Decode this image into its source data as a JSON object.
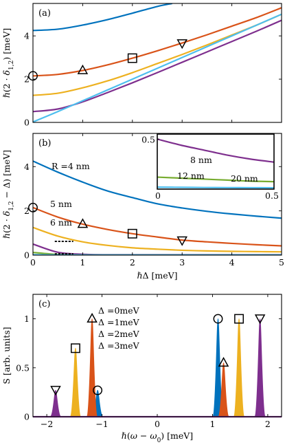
{
  "colors": {
    "blue": "#0072BD",
    "orange": "#D95319",
    "yellow": "#EDB120",
    "purple": "#7E2F8E",
    "cyan": "#4DBEEE",
    "green": "#77AC30",
    "black": "#000000"
  },
  "chart_data": [
    {
      "panel": "(a)",
      "type": "line",
      "ylabel": "ℏ(2 · δ1,2) [meV]",
      "xlim": [
        0,
        5
      ],
      "ylim": [
        0,
        5.5
      ],
      "xticks": [
        0,
        1,
        2,
        3,
        4,
        5
      ],
      "yticks": [
        0,
        2,
        4
      ],
      "xticklabels_visible": false,
      "grid": false,
      "series": [
        {
          "color": "blue",
          "x": [
            0,
            0.5,
            1,
            1.5,
            2,
            2.5,
            2.8
          ],
          "y": [
            4.25,
            4.31,
            4.5,
            4.75,
            5.05,
            5.36,
            5.5
          ]
        },
        {
          "color": "orange",
          "x": [
            0,
            0.5,
            1,
            1.5,
            2,
            2.5,
            3,
            3.5,
            4,
            4.5,
            5
          ],
          "y": [
            2.15,
            2.22,
            2.4,
            2.66,
            2.97,
            3.31,
            3.67,
            4.05,
            4.45,
            4.85,
            5.3
          ]
        },
        {
          "color": "yellow",
          "x": [
            0,
            0.5,
            1,
            1.5,
            2,
            2.5,
            3,
            3.5,
            4,
            4.5,
            5
          ],
          "y": [
            1.25,
            1.35,
            1.6,
            1.92,
            2.3,
            2.72,
            3.14,
            3.58,
            4.04,
            4.5,
            5.0
          ]
        },
        {
          "color": "purple",
          "x": [
            0,
            0.5,
            1,
            1.5,
            2,
            2.5,
            3,
            3.5,
            4,
            4.5,
            5
          ],
          "y": [
            0.5,
            0.62,
            0.95,
            1.38,
            1.83,
            2.3,
            2.78,
            3.26,
            3.74,
            4.22,
            4.72
          ]
        },
        {
          "color": "cyan",
          "x": [
            0,
            0.5,
            1,
            1.5,
            2,
            2.5,
            3,
            3.5,
            4,
            4.5,
            5
          ],
          "y": [
            0.02,
            0.5,
            1.0,
            1.5,
            2.0,
            2.5,
            3.0,
            3.5,
            4.0,
            4.5,
            5.0
          ]
        }
      ],
      "markers": [
        {
          "shape": "circle",
          "x": 0,
          "y": 2.15
        },
        {
          "shape": "triangle-up",
          "x": 1,
          "y": 2.4
        },
        {
          "shape": "square",
          "x": 2,
          "y": 2.97
        },
        {
          "shape": "triangle-down",
          "x": 3,
          "y": 3.67
        }
      ]
    },
    {
      "panel": "(b)",
      "type": "line",
      "xlabel": "ℏΔ [meV]",
      "ylabel": "ℏ(2 · δ1,2 − Δ) [meV]",
      "xlim": [
        0,
        5
      ],
      "ylim": [
        0,
        5.5
      ],
      "xticks": [
        0,
        1,
        2,
        3,
        4,
        5
      ],
      "yticks": [
        0,
        2,
        4
      ],
      "grid": false,
      "series": [
        {
          "label": "R =4 nm",
          "color": "blue",
          "x": [
            0,
            0.5,
            1,
            1.5,
            2,
            2.5,
            3,
            3.5,
            4,
            4.5,
            5
          ],
          "y": [
            4.25,
            3.75,
            3.3,
            2.9,
            2.6,
            2.32,
            2.13,
            1.98,
            1.86,
            1.76,
            1.67
          ]
        },
        {
          "label": "5 nm",
          "color": "orange",
          "x": [
            0,
            0.5,
            1,
            1.5,
            2,
            2.5,
            3,
            3.5,
            4,
            4.5,
            5
          ],
          "y": [
            2.15,
            1.72,
            1.4,
            1.16,
            0.97,
            0.82,
            0.68,
            0.6,
            0.53,
            0.47,
            0.42
          ]
        },
        {
          "label": "6 nm",
          "color": "yellow",
          "x": [
            0,
            0.5,
            1,
            1.5,
            2,
            2.5,
            3,
            3.5,
            4,
            4.5,
            5
          ],
          "y": [
            1.25,
            0.86,
            0.6,
            0.44,
            0.33,
            0.27,
            0.22,
            0.19,
            0.17,
            0.16,
            0.15
          ]
        },
        {
          "color": "purple",
          "x": [
            0,
            0.5,
            1,
            1.5,
            2,
            2.5,
            3,
            4,
            5
          ],
          "y": [
            0.5,
            0.13,
            0.04,
            0.02,
            0.02,
            0.02,
            0.02,
            0.02,
            0.02
          ]
        },
        {
          "color": "green",
          "x": [
            0,
            0.5,
            1,
            2,
            5
          ],
          "y": [
            0.12,
            0.03,
            0.01,
            0.01,
            0.01
          ]
        },
        {
          "color": "cyan",
          "x": [
            0,
            0.5,
            1,
            2,
            5
          ],
          "y": [
            0.02,
            0.01,
            0.01,
            0.01,
            0.01
          ]
        }
      ],
      "dotted": [
        {
          "color": "black",
          "x": [
            0.45,
            0.8
          ],
          "y": [
            0.62,
            0.62
          ]
        },
        {
          "color": "black",
          "x": [
            0.45,
            0.8
          ],
          "y": [
            0.06,
            0.06
          ]
        }
      ],
      "markers": [
        {
          "shape": "circle",
          "x": 0,
          "y": 2.15
        },
        {
          "shape": "triangle-up",
          "x": 1,
          "y": 1.4
        },
        {
          "shape": "square",
          "x": 2,
          "y": 0.97
        },
        {
          "shape": "triangle-down",
          "x": 3,
          "y": 0.68
        }
      ],
      "inset": {
        "type": "line",
        "xlim": [
          0,
          0.5
        ],
        "ylim": [
          0,
          0.55
        ],
        "xticks": [
          0,
          0.5
        ],
        "yticks": [
          0.5
        ],
        "series": [
          {
            "label": "8 nm",
            "color": "purple",
            "x": [
              0,
              0.1,
              0.2,
              0.3,
              0.4,
              0.5
            ],
            "y": [
              0.5,
              0.44,
              0.39,
              0.34,
              0.3,
              0.27
            ]
          },
          {
            "label": "12 nm",
            "color": "green",
            "x": [
              0,
              0.1,
              0.2,
              0.3,
              0.4,
              0.5
            ],
            "y": [
              0.12,
              0.11,
              0.1,
              0.09,
              0.08,
              0.075
            ]
          },
          {
            "label": "20 nm",
            "color": "cyan",
            "x": [
              0,
              0.1,
              0.2,
              0.3,
              0.4,
              0.5
            ],
            "y": [
              0.02,
              0.018,
              0.016,
              0.015,
              0.014,
              0.013
            ]
          }
        ]
      }
    },
    {
      "panel": "(c)",
      "type": "line",
      "xlabel": "ℏ(ω − ω0) [meV]",
      "ylabel": "S [arb. units]",
      "xlim": [
        -2.25,
        2.25
      ],
      "ylim": [
        0,
        1.25
      ],
      "xticks": [
        -2,
        -1,
        0,
        1,
        2
      ],
      "yticks": [
        0,
        0.5,
        1
      ],
      "grid": false,
      "legend_position": "top-left",
      "series": [
        {
          "name": "Δ =0meV",
          "color": "blue",
          "peaks": [
            {
              "x": -1.08,
              "y": 0.27
            },
            {
              "x": 1.1,
              "y": 1.0
            }
          ]
        },
        {
          "name": "Δ =1meV",
          "color": "orange",
          "peaks": [
            {
              "x": -1.18,
              "y": 1.0
            },
            {
              "x": 1.2,
              "y": 0.55
            }
          ]
        },
        {
          "name": "Δ =2meV",
          "color": "yellow",
          "peaks": [
            {
              "x": -1.48,
              "y": 0.7
            },
            {
              "x": 1.48,
              "y": 1.0
            }
          ]
        },
        {
          "name": "Δ =3meV",
          "color": "purple",
          "peaks": [
            {
              "x": -1.84,
              "y": 0.27
            },
            {
              "x": 1.86,
              "y": 1.0
            }
          ]
        }
      ],
      "markers": [
        {
          "shape": "circle",
          "x": -1.08,
          "y": 0.27
        },
        {
          "shape": "circle",
          "x": 1.1,
          "y": 1.0
        },
        {
          "shape": "triangle-up",
          "x": -1.18,
          "y": 1.0
        },
        {
          "shape": "triangle-up",
          "x": 1.2,
          "y": 0.55
        },
        {
          "shape": "square",
          "x": -1.48,
          "y": 0.7
        },
        {
          "shape": "square",
          "x": 1.48,
          "y": 1.0
        },
        {
          "shape": "triangle-down",
          "x": -1.84,
          "y": 0.27
        },
        {
          "shape": "triangle-down",
          "x": 1.86,
          "y": 1.0
        }
      ]
    }
  ]
}
